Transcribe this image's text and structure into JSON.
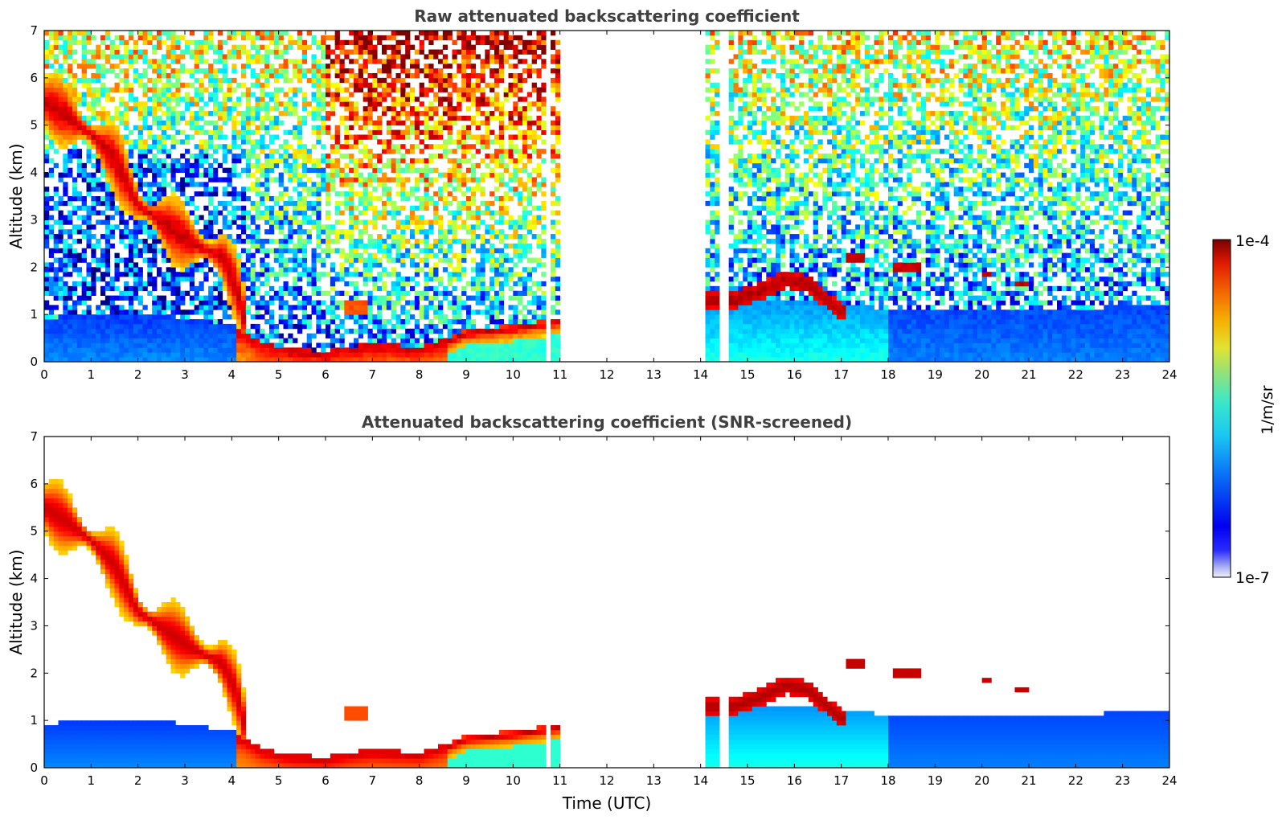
{
  "chart_data": [
    {
      "type": "heatmap",
      "title": "Raw attenuated backscattering coefficient",
      "xlabel": "",
      "ylabel": "Altitude (km)",
      "xlim": [
        0,
        24
      ],
      "ylim": [
        0,
        7
      ],
      "xticks": [
        "0",
        "1",
        "2",
        "3",
        "4",
        "5",
        "6",
        "7",
        "8",
        "9",
        "10",
        "11",
        "12",
        "13",
        "14",
        "15",
        "16",
        "17",
        "18",
        "19",
        "20",
        "21",
        "22",
        "23",
        "24"
      ],
      "yticks": [
        "0",
        "1",
        "2",
        "3",
        "4",
        "5",
        "6",
        "7"
      ],
      "data_gaps_hours": [
        [
          10.7,
          10.75
        ],
        [
          11.05,
          11.25
        ],
        [
          11.3,
          14.1
        ],
        [
          14.4,
          14.45
        ],
        [
          14.5,
          14.6
        ]
      ],
      "features": [
        {
          "kind": "descending cloud layer",
          "points": [
            [
              0,
              5.6
            ],
            [
              1,
              4.9
            ],
            [
              2,
              3.4
            ],
            [
              3,
              2.6
            ],
            [
              4,
              2.0
            ],
            [
              4.2,
              1.2
            ]
          ]
        },
        {
          "kind": "boundary layer",
          "points": [
            [
              4.2,
              0.6
            ],
            [
              5,
              0.2
            ],
            [
              6,
              0.15
            ],
            [
              7,
              0.3
            ],
            [
              8,
              0.25
            ],
            [
              9,
              0.6
            ],
            [
              10,
              0.7
            ],
            [
              11,
              0.8
            ]
          ]
        },
        {
          "kind": "low clouds",
          "points": [
            [
              14.7,
              1.4
            ],
            [
              15.5,
              1.6
            ],
            [
              16,
              1.8
            ],
            [
              16.5,
              1.6
            ],
            [
              17,
              1.05
            ]
          ]
        },
        {
          "kind": "small cloud patches",
          "points": [
            [
              17.3,
              2.2
            ],
            [
              18.4,
              2.0
            ],
            [
              20.1,
              1.85
            ],
            [
              20.9,
              1.65
            ]
          ]
        }
      ]
    },
    {
      "type": "heatmap",
      "title": "Attenuated backscattering coefficient (SNR-screened)",
      "xlabel": "Time (UTC)",
      "ylabel": "Altitude (km)",
      "xlim": [
        0,
        24
      ],
      "ylim": [
        0,
        7
      ],
      "xticks": [
        "0",
        "1",
        "2",
        "3",
        "4",
        "5",
        "6",
        "7",
        "8",
        "9",
        "10",
        "11",
        "12",
        "13",
        "14",
        "15",
        "16",
        "17",
        "18",
        "19",
        "20",
        "21",
        "22",
        "23",
        "24"
      ],
      "yticks": [
        "0",
        "1",
        "2",
        "3",
        "4",
        "5",
        "6",
        "7"
      ]
    }
  ],
  "colorbar": {
    "max_label": "1e-4",
    "min_label": "1e-7",
    "unit_label": "1/m/sr",
    "colormap": "jet"
  }
}
